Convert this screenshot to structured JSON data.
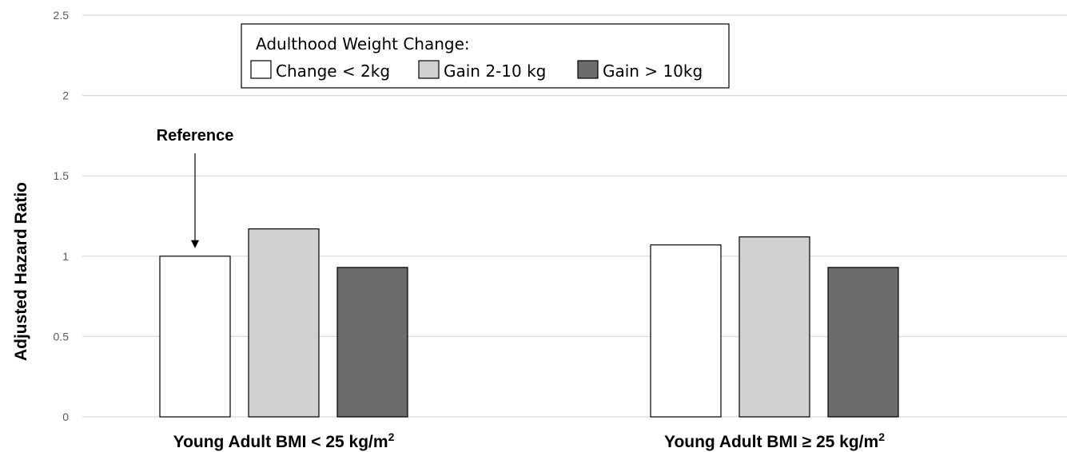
{
  "chart_data": {
    "type": "bar",
    "title": "",
    "xlabel": "",
    "ylabel": "Adjusted Hazard Ratio",
    "ylim": [
      0,
      2.5
    ],
    "yticks": [
      0,
      0.5,
      1,
      1.5,
      2,
      2.5
    ],
    "ytick_labels": [
      "0",
      "0.5",
      "1",
      "1.5",
      "2",
      "2.5"
    ],
    "grid": true,
    "categories": [
      {
        "label": "Young Adult BMI < 25 kg/m",
        "sup": "2"
      },
      {
        "label": "Young Adult BMI ≥ 25 kg/m",
        "sup": "2"
      }
    ],
    "legend": {
      "title": "Adulthood Weight Change:",
      "placement": "top-left"
    },
    "series": [
      {
        "name": "Change < 2kg",
        "color": "#ffffff",
        "values": [
          1.0,
          1.07
        ]
      },
      {
        "name": "Gain 2-10 kg",
        "color": "#d0d0d0",
        "values": [
          1.17,
          1.12
        ]
      },
      {
        "name": "Gain > 10kg",
        "color": "#6b6b6b",
        "values": [
          0.93,
          0.93
        ]
      }
    ],
    "annotations": [
      {
        "text": "Reference",
        "category_index": 0,
        "series_index": 0
      }
    ]
  }
}
